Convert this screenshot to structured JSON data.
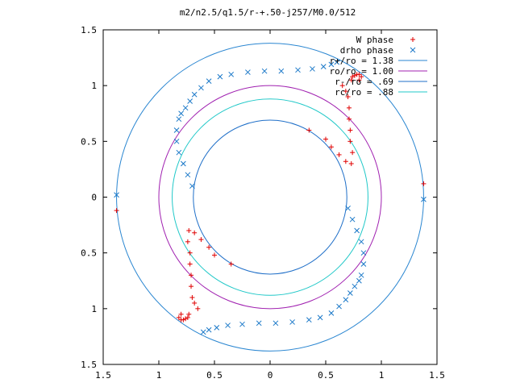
{
  "chart_data": {
    "type": "scatter",
    "title": "m2/n2.5/q1.5/r-+.50-j257/M0.0/512",
    "xlabel": "",
    "ylabel": "",
    "xlim": [
      -1.5,
      1.5
    ],
    "ylim": [
      -1.5,
      1.5
    ],
    "x_tick_values": [
      -1.5,
      -1,
      -0.5,
      0,
      0.5,
      1,
      1.5
    ],
    "x_tick_labels": [
      "1.5",
      "1",
      "0.5",
      "0",
      "0.5",
      "1",
      "1.5"
    ],
    "y_tick_values": [
      1.5,
      1,
      0.5,
      0,
      -0.5,
      -1,
      -1.5
    ],
    "y_tick_labels": [
      "1.5",
      "1",
      "0.5",
      "0",
      "0.5",
      "1",
      "1.5"
    ],
    "grid": false,
    "legend_position": "top-right",
    "circles": [
      {
        "label": "r+/ro = 1.38",
        "radius": 1.38,
        "color": "#2a86d1"
      },
      {
        "label": "ro/ro = 1.00",
        "radius": 1.0,
        "color": "#a020b0"
      },
      {
        "label": "r-/ro = .69",
        "radius": 0.69,
        "color": "#1f6fc8"
      },
      {
        "label": "rc/ro = .88",
        "radius": 0.88,
        "color": "#20c8c8"
      }
    ],
    "series": [
      {
        "name": "W phase",
        "marker": "plus",
        "color": "#e00000",
        "x": [
          -1.38,
          -0.35,
          -0.5,
          -0.55,
          -0.62,
          -0.68,
          -0.73,
          -0.74,
          -0.72,
          -0.72,
          -0.71,
          -0.71,
          -0.7,
          -0.68,
          -0.65,
          -0.73,
          -0.74,
          -0.76,
          -0.78,
          -0.8,
          -0.82,
          -0.8,
          1.38,
          0.35,
          0.5,
          0.55,
          0.62,
          0.68,
          0.73,
          0.74,
          0.72,
          0.72,
          0.71,
          0.71,
          0.7,
          0.68,
          0.65,
          0.73,
          0.74,
          0.76,
          0.78,
          0.8,
          0.82,
          0.8
        ],
        "y": [
          -0.12,
          -0.6,
          -0.52,
          -0.45,
          -0.38,
          -0.32,
          -0.3,
          -0.4,
          -0.5,
          -0.6,
          -0.7,
          -0.8,
          -0.9,
          -0.95,
          -1.0,
          -1.05,
          -1.08,
          -1.09,
          -1.1,
          -1.1,
          -1.08,
          -1.05,
          0.12,
          0.6,
          0.52,
          0.45,
          0.38,
          0.32,
          0.3,
          0.4,
          0.5,
          0.6,
          0.7,
          0.8,
          0.9,
          0.95,
          1.0,
          1.05,
          1.08,
          1.09,
          1.1,
          1.1,
          1.08,
          1.05
        ]
      },
      {
        "name": "drho phase",
        "marker": "x",
        "color": "#1a78c8",
        "x": [
          1.38,
          0.7,
          0.74,
          0.78,
          0.82,
          0.84,
          0.84,
          0.82,
          0.8,
          0.76,
          0.72,
          0.68,
          0.62,
          0.55,
          0.45,
          0.35,
          0.2,
          0.05,
          -0.1,
          -0.25,
          -0.38,
          -0.48,
          -0.55,
          -0.6,
          -1.38,
          -0.7,
          -0.74,
          -0.78,
          -0.82,
          -0.84,
          -0.84,
          -0.82,
          -0.8,
          -0.76,
          -0.72,
          -0.68,
          -0.62,
          -0.55,
          -0.45,
          -0.35,
          -0.2,
          -0.05,
          0.1,
          0.25,
          0.38,
          0.48,
          0.55,
          0.6
        ],
        "y": [
          -0.02,
          -0.1,
          -0.2,
          -0.3,
          -0.4,
          -0.5,
          -0.6,
          -0.7,
          -0.75,
          -0.8,
          -0.86,
          -0.92,
          -0.98,
          -1.04,
          -1.08,
          -1.1,
          -1.12,
          -1.13,
          -1.13,
          -1.14,
          -1.15,
          -1.17,
          -1.19,
          -1.21,
          0.02,
          0.1,
          0.2,
          0.3,
          0.4,
          0.5,
          0.6,
          0.7,
          0.75,
          0.8,
          0.86,
          0.92,
          0.98,
          1.04,
          1.08,
          1.1,
          1.12,
          1.13,
          1.13,
          1.14,
          1.15,
          1.17,
          1.19,
          1.21
        ]
      }
    ]
  }
}
